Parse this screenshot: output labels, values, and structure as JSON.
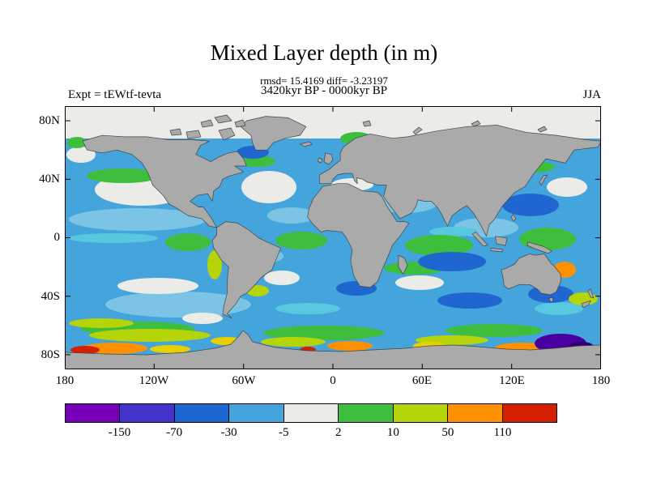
{
  "title": "Mixed Layer depth (in m)",
  "stats_line": "rmsd= 15.4169 diff= -3.23197",
  "period_line": "3420kyr BP - 0000kyr BP",
  "experiment_label": "Expt = tEWtf-tevta",
  "season_label": "JJA",
  "axes": {
    "lat_ticks": [
      "80N",
      "40N",
      "0",
      "40S",
      "80S"
    ],
    "lon_ticks": [
      "180",
      "120W",
      "60W",
      "0",
      "60E",
      "120E",
      "180"
    ]
  },
  "colorbar": {
    "labels": [
      "-150",
      "-70",
      "-30",
      "-5",
      "2",
      "10",
      "50",
      "110"
    ],
    "colors": [
      "#7700bb",
      "#4433cc",
      "#1f66d0",
      "#44a4dc",
      "#ebebe8",
      "#3dbe3d",
      "#b5d40a",
      "#ff9000",
      "#d42000"
    ]
  },
  "chart_data": {
    "type": "heatmap",
    "title": "Mixed Layer depth (in m)",
    "subtitle_stats": {
      "rmsd": 15.4169,
      "diff": -3.23197
    },
    "comparison": "3420kyr BP - 0000kyr BP",
    "experiment": "tEWtf-tevta",
    "season": "JJA",
    "projection": "equirectangular world map, 0 deg centered, land masked gray",
    "x_axis": {
      "label": "longitude",
      "range_deg": [
        -180,
        180
      ],
      "ticks": [
        "180",
        "120W",
        "60W",
        "0",
        "60E",
        "120E",
        "180"
      ]
    },
    "y_axis": {
      "label": "latitude",
      "range_deg": [
        -90,
        90
      ],
      "ticks": [
        "80N",
        "40N",
        "0",
        "40S",
        "80S"
      ]
    },
    "colorbar_levels_m": [
      -150,
      -70,
      -30,
      -5,
      2,
      10,
      50,
      110
    ],
    "colorbar_colors": [
      "#7700bb",
      "#4433cc",
      "#1f66d0",
      "#44a4dc",
      "#ebebe8",
      "#3dbe3d",
      "#b5d40a",
      "#ff9000",
      "#d42000"
    ],
    "regions": [
      {
        "region": "most mid-latitude and tropical ocean",
        "value_band_m": "-30 to -5",
        "color": "light blue"
      },
      {
        "region": "Arctic ocean north of ~70N",
        "value_band_m": "-5 to 2",
        "color": "pale gray"
      },
      {
        "region": "subtropical N Pacific and N Atlantic (~25-45N)",
        "value_band_m": "-5 to 2",
        "color": "white"
      },
      {
        "region": "equatorial Atlantic, E Pacific, Indian, W Pacific patches",
        "value_band_m": "2 to 10",
        "color": "green"
      },
      {
        "region": "central Indian Ocean, NW Pacific, SW Pacific patches",
        "value_band_m": "-70 to -30",
        "color": "blue"
      },
      {
        "region": "Southern Ocean band ~45-60S",
        "value_band_m": "10 to 50",
        "color": "yellow-green"
      },
      {
        "region": "Peru coastal upwelling strip",
        "value_band_m": "10 to 50",
        "color": "yellow-green"
      },
      {
        "region": "Antarctic coastal band, SE Pacific / S Indian sectors",
        "value_band_m": "50 to 110 and >110",
        "color": "orange to red"
      },
      {
        "region": "Coral Sea off NE Australia",
        "value_band_m": "50 to 110",
        "color": "orange"
      },
      {
        "region": "Ross Sea sector (~150E-180, 65-75S)",
        "value_band_m": "< -150",
        "color": "dark purple"
      }
    ]
  }
}
